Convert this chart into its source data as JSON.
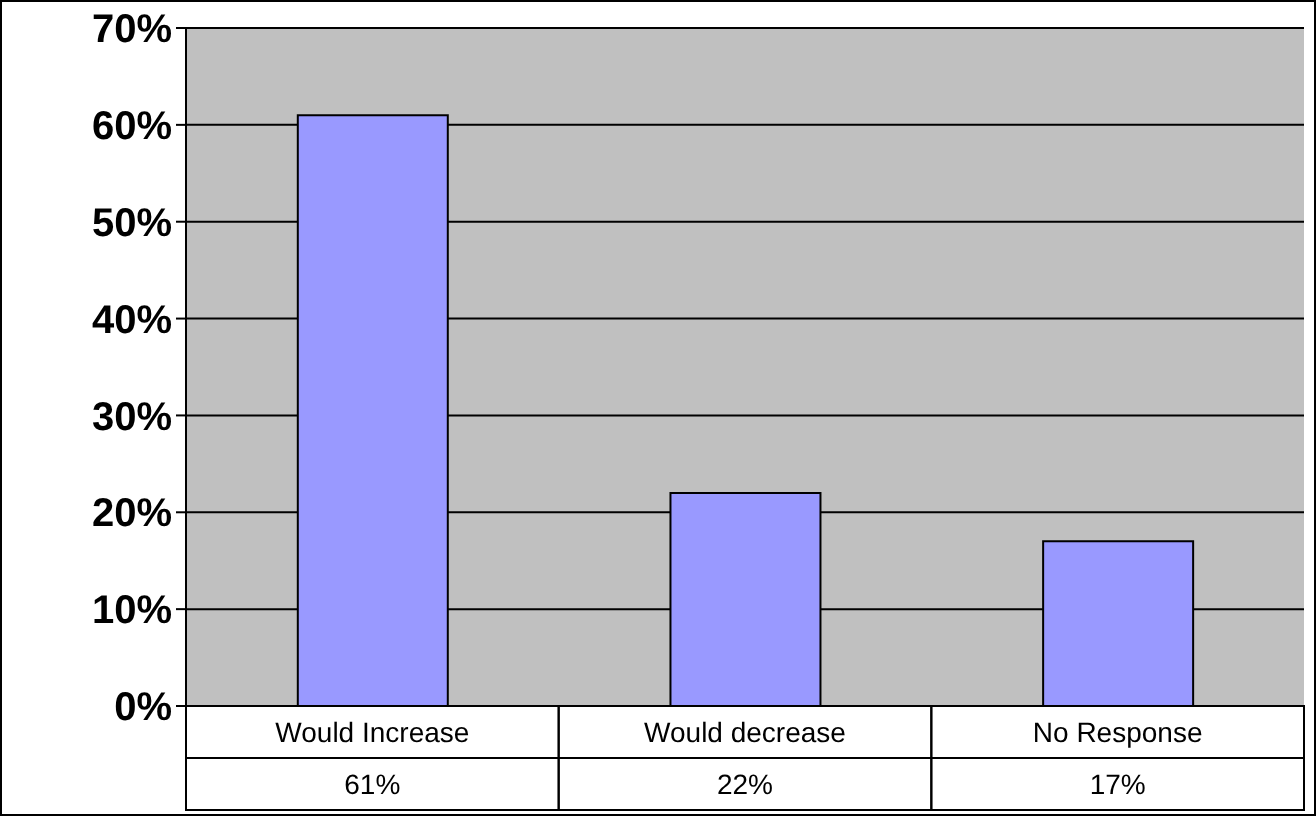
{
  "chart_data": {
    "type": "bar",
    "categories": [
      "Would Increase",
      "Would decrease",
      "No Response"
    ],
    "values": [
      61,
      22,
      17
    ],
    "color": "#9999ff",
    "ylim": [
      0,
      70
    ],
    "yticks": [
      {
        "value": 0,
        "label": "0%"
      },
      {
        "value": 10,
        "label": "10%"
      },
      {
        "value": 20,
        "label": "20%"
      },
      {
        "value": 30,
        "label": "30%"
      },
      {
        "value": 40,
        "label": "40%"
      },
      {
        "value": 50,
        "label": "50%"
      },
      {
        "value": 60,
        "label": "60%"
      },
      {
        "value": 70,
        "label": "70%"
      }
    ],
    "value_labels": [
      "61%",
      "22%",
      "17%"
    ],
    "grid": "y"
  }
}
